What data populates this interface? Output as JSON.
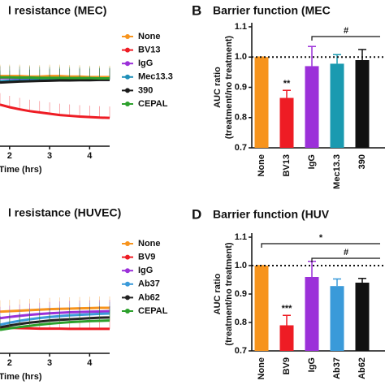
{
  "chart_data": [
    {
      "type": "line",
      "title": "l resistance (MEC)",
      "xlabel": "Time (hrs)",
      "x": [
        1.76,
        2.0,
        2.25,
        2.5,
        2.75,
        3.0,
        3.25,
        3.5,
        3.75,
        4.0,
        4.25,
        4.5
      ],
      "xlim": [
        1.76,
        4.5
      ],
      "xticks": [
        2,
        3,
        4
      ],
      "ylim": [
        0.6,
        1.1
      ],
      "series": [
        {
          "name": "None",
          "color": "#f7941d",
          "values": [
            0.87,
            0.87,
            0.87,
            0.868,
            0.868,
            0.87,
            0.87,
            0.868,
            0.868,
            0.866,
            0.866,
            0.866
          ]
        },
        {
          "name": "BV13",
          "color": "#ee1c24",
          "values": [
            0.76,
            0.75,
            0.742,
            0.735,
            0.73,
            0.725,
            0.72,
            0.717,
            0.714,
            0.712,
            0.71,
            0.709
          ]
        },
        {
          "name": "IgG",
          "color": "#9b30d9",
          "values": [
            0.862,
            0.862,
            0.86,
            0.86,
            0.86,
            0.858,
            0.858,
            0.858,
            0.857,
            0.857,
            0.856,
            0.856
          ]
        },
        {
          "name": "Mec13.3",
          "color": "#1f8fb8",
          "values": [
            0.85,
            0.852,
            0.853,
            0.854,
            0.855,
            0.855,
            0.856,
            0.856,
            0.856,
            0.857,
            0.857,
            0.857
          ]
        },
        {
          "name": "390",
          "color": "#1a1a1a",
          "values": [
            0.845,
            0.847,
            0.849,
            0.85,
            0.851,
            0.852,
            0.853,
            0.853,
            0.854,
            0.854,
            0.855,
            0.855
          ]
        },
        {
          "name": "CEPAL",
          "color": "#2ca02c",
          "values": [
            0.865,
            0.865,
            0.864,
            0.864,
            0.863,
            0.863,
            0.863,
            0.862,
            0.862,
            0.862,
            0.861,
            0.861
          ]
        }
      ]
    },
    {
      "type": "bar",
      "panel_label": "B",
      "title": "Barrier function (MEC",
      "ylabel": [
        "AUC ratio",
        "(treatment/no treatment)"
      ],
      "categories": [
        "None",
        "BV13",
        "IgG",
        "Mec13.3",
        "390"
      ],
      "values": [
        1.0,
        0.865,
        0.97,
        0.978,
        0.99
      ],
      "errors": [
        0,
        0.025,
        0.065,
        0.03,
        0.035
      ],
      "colors": [
        "#f7941d",
        "#ee1c24",
        "#9b30d9",
        "#1a9ab0",
        "#111111"
      ],
      "ylim": [
        0.7,
        1.1
      ],
      "yticks": [
        0.7,
        0.8,
        0.9,
        {
          "value": 1.0,
          "label": "1.0"
        },
        1.1
      ],
      "reference": 1.0,
      "annotations": [
        "**"
      ],
      "brackets": [
        "#"
      ]
    },
    {
      "type": "line",
      "title": "l resistance (HUVEC)",
      "xlabel": "Time (hrs)",
      "x": [
        1.76,
        2.0,
        2.25,
        2.5,
        2.75,
        3.0,
        3.25,
        3.5,
        3.75,
        4.0,
        4.25,
        4.5
      ],
      "xlim": [
        1.76,
        4.5
      ],
      "xticks": [
        2,
        3,
        4
      ],
      "ylim": [
        0.6,
        1.1
      ],
      "series": [
        {
          "name": "None",
          "color": "#f7941d",
          "values": [
            0.76,
            0.762,
            0.764,
            0.766,
            0.768,
            0.77,
            0.771,
            0.772,
            0.773,
            0.774,
            0.775,
            0.775
          ]
        },
        {
          "name": "BV9",
          "color": "#ee1c24",
          "values": [
            0.7,
            0.698,
            0.697,
            0.696,
            0.695,
            0.695,
            0.695,
            0.694,
            0.694,
            0.694,
            0.694,
            0.694
          ]
        },
        {
          "name": "IgG",
          "color": "#9b30d9",
          "values": [
            0.735,
            0.74,
            0.744,
            0.748,
            0.751,
            0.754,
            0.756,
            0.758,
            0.759,
            0.76,
            0.761,
            0.762
          ]
        },
        {
          "name": "Ab37",
          "color": "#3a9ad9",
          "values": [
            0.71,
            0.718,
            0.725,
            0.731,
            0.736,
            0.74,
            0.743,
            0.746,
            0.748,
            0.75,
            0.752,
            0.753
          ]
        },
        {
          "name": "Ab62",
          "color": "#222222",
          "values": [
            0.7,
            0.707,
            0.713,
            0.718,
            0.722,
            0.726,
            0.729,
            0.731,
            0.733,
            0.735,
            0.737,
            0.738
          ]
        },
        {
          "name": "CEPAL",
          "color": "#2ca02c",
          "values": [
            0.69,
            0.696,
            0.701,
            0.706,
            0.71,
            0.714,
            0.717,
            0.72,
            0.722,
            0.724,
            0.725,
            0.726
          ]
        }
      ]
    },
    {
      "type": "bar",
      "panel_label": "D",
      "title": "Barrier function (HUV",
      "ylabel": [
        "AUC ratio",
        "(treatment/no treatment)"
      ],
      "categories": [
        "None",
        "BV9",
        "IgG",
        "Ab37",
        "Ab62"
      ],
      "values": [
        1.0,
        0.79,
        0.96,
        0.928,
        0.94
      ],
      "errors": [
        0,
        0.035,
        0.055,
        0.025,
        0.015
      ],
      "colors": [
        "#f7941d",
        "#ee1c24",
        "#9b30d9",
        "#3a9ad9",
        "#111111"
      ],
      "ylim": [
        0.7,
        1.1
      ],
      "yticks": [
        0.7,
        0.8,
        0.9,
        {
          "value": 1.0,
          "label": "1.0"
        },
        1.1
      ],
      "reference": 1.0,
      "annotations": [
        "***"
      ],
      "brackets": [
        "*",
        "#"
      ]
    }
  ]
}
